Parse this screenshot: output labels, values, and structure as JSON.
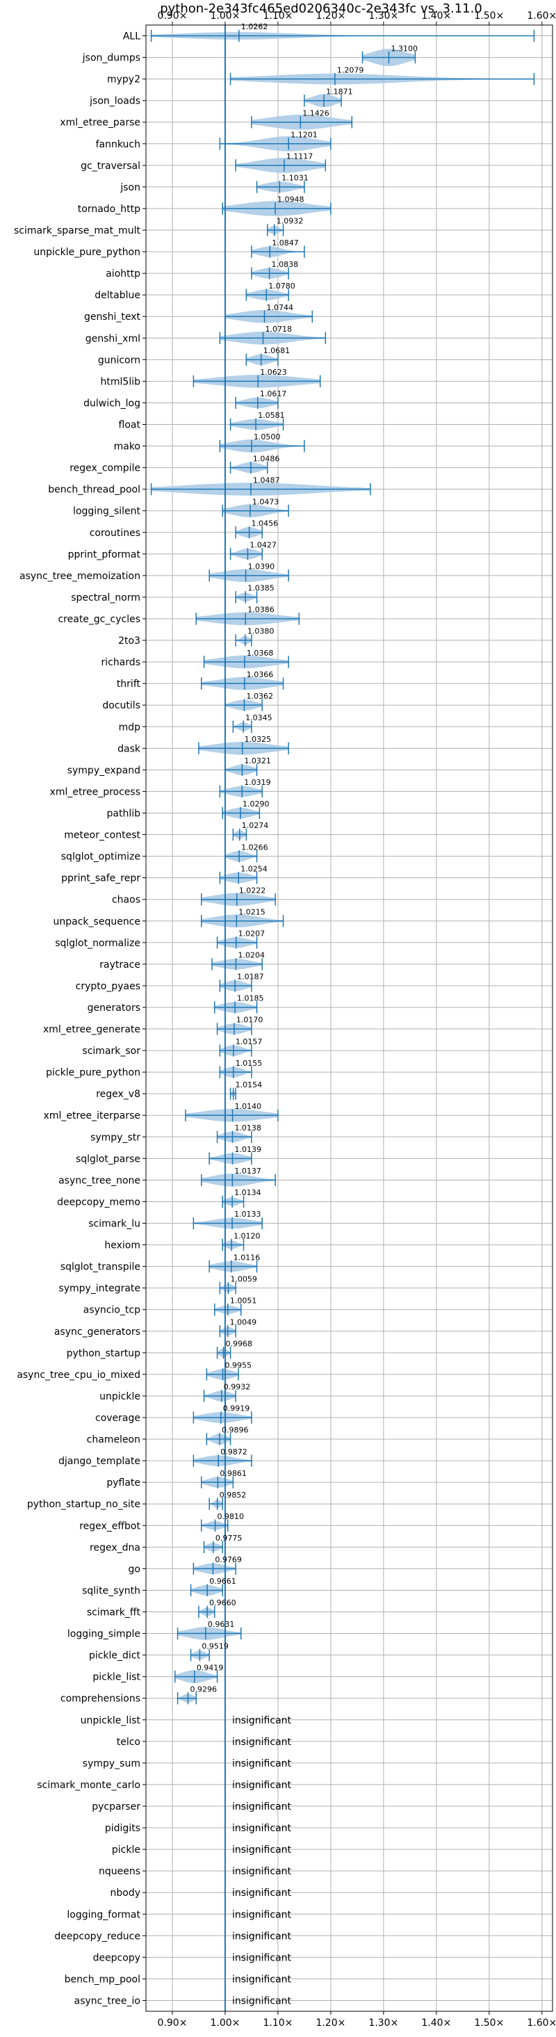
{
  "chart_data": {
    "type": "violin",
    "title": "python-2e343fc465ed0206340c-2e343fc vs. 3.11.0",
    "xlabel": "",
    "ylabel": "",
    "xlim": [
      0.85,
      1.62
    ],
    "xticks": [
      0.9,
      1.0,
      1.1,
      1.2,
      1.3,
      1.4,
      1.5,
      1.6
    ],
    "xtick_labels": [
      "0.90×",
      "1.00×",
      "1.10×",
      "1.20×",
      "1.30×",
      "1.40×",
      "1.50×",
      "1.60×"
    ],
    "reference_line": 1.0,
    "grid": true,
    "colors": {
      "violin": "#a6c8e4",
      "line": "#1f77b4",
      "grid": "#b0b0b0"
    },
    "insignificant_text": "insignificant",
    "benchmarks": [
      {
        "name": "ALL",
        "value": "1.0262",
        "median": 1.0262,
        "lo": 0.86,
        "hi": 1.585,
        "width": 0.35
      },
      {
        "name": "json_dumps",
        "value": "1.3100",
        "median": 1.31,
        "lo": 1.26,
        "hi": 1.36,
        "width": 0.8
      },
      {
        "name": "mypy2",
        "value": "1.2079",
        "median": 1.2079,
        "lo": 1.01,
        "hi": 1.585,
        "width": 0.5
      },
      {
        "name": "json_loads",
        "value": "1.1871",
        "median": 1.1871,
        "lo": 1.15,
        "hi": 1.22,
        "width": 0.6
      },
      {
        "name": "xml_etree_parse",
        "value": "1.1426",
        "median": 1.1426,
        "lo": 1.05,
        "hi": 1.24,
        "width": 0.7
      },
      {
        "name": "fannkuch",
        "value": "1.1201",
        "median": 1.1201,
        "lo": 0.99,
        "hi": 1.2,
        "width": 0.7
      },
      {
        "name": "gc_traversal",
        "value": "1.1117",
        "median": 1.1117,
        "lo": 1.02,
        "hi": 1.19,
        "width": 0.7
      },
      {
        "name": "json",
        "value": "1.1031",
        "median": 1.1031,
        "lo": 1.06,
        "hi": 1.15,
        "width": 0.5
      },
      {
        "name": "tornado_http",
        "value": "1.0948",
        "median": 1.0948,
        "lo": 0.995,
        "hi": 1.2,
        "width": 0.7
      },
      {
        "name": "scimark_sparse_mat_mult",
        "value": "1.0932",
        "median": 1.0932,
        "lo": 1.08,
        "hi": 1.11,
        "width": 0.4
      },
      {
        "name": "unpickle_pure_python",
        "value": "1.0847",
        "median": 1.0847,
        "lo": 1.05,
        "hi": 1.15,
        "width": 0.5
      },
      {
        "name": "aiohttp",
        "value": "1.0838",
        "median": 1.0838,
        "lo": 1.05,
        "hi": 1.12,
        "width": 0.5
      },
      {
        "name": "deltablue",
        "value": "1.0780",
        "median": 1.078,
        "lo": 1.04,
        "hi": 1.12,
        "width": 0.5
      },
      {
        "name": "genshi_text",
        "value": "1.0744",
        "median": 1.0744,
        "lo": 1.0,
        "hi": 1.165,
        "width": 0.6
      },
      {
        "name": "genshi_xml",
        "value": "1.0718",
        "median": 1.0718,
        "lo": 0.99,
        "hi": 1.19,
        "width": 0.6
      },
      {
        "name": "gunicorn",
        "value": "1.0681",
        "median": 1.0681,
        "lo": 1.04,
        "hi": 1.1,
        "width": 0.5
      },
      {
        "name": "html5lib",
        "value": "1.0623",
        "median": 1.0623,
        "lo": 0.94,
        "hi": 1.18,
        "width": 0.6
      },
      {
        "name": "dulwich_log",
        "value": "1.0617",
        "median": 1.0617,
        "lo": 1.02,
        "hi": 1.1,
        "width": 0.5
      },
      {
        "name": "float",
        "value": "1.0581",
        "median": 1.0581,
        "lo": 1.01,
        "hi": 1.11,
        "width": 0.5
      },
      {
        "name": "mako",
        "value": "1.0500",
        "median": 1.05,
        "lo": 0.99,
        "hi": 1.15,
        "width": 0.6
      },
      {
        "name": "regex_compile",
        "value": "1.0486",
        "median": 1.0486,
        "lo": 1.01,
        "hi": 1.08,
        "width": 0.5
      },
      {
        "name": "bench_thread_pool",
        "value": "1.0487",
        "median": 1.0487,
        "lo": 0.86,
        "hi": 1.275,
        "width": 0.6
      },
      {
        "name": "logging_silent",
        "value": "1.0473",
        "median": 1.0473,
        "lo": 0.995,
        "hi": 1.12,
        "width": 0.6
      },
      {
        "name": "coroutines",
        "value": "1.0456",
        "median": 1.0456,
        "lo": 1.02,
        "hi": 1.07,
        "width": 0.5
      },
      {
        "name": "pprint_pformat",
        "value": "1.0427",
        "median": 1.0427,
        "lo": 1.01,
        "hi": 1.07,
        "width": 0.5
      },
      {
        "name": "async_tree_memoization",
        "value": "1.0390",
        "median": 1.039,
        "lo": 0.97,
        "hi": 1.12,
        "width": 0.6
      },
      {
        "name": "spectral_norm",
        "value": "1.0385",
        "median": 1.0385,
        "lo": 1.02,
        "hi": 1.06,
        "width": 0.4
      },
      {
        "name": "create_gc_cycles",
        "value": "1.0386",
        "median": 1.0386,
        "lo": 0.945,
        "hi": 1.14,
        "width": 0.6
      },
      {
        "name": "2to3",
        "value": "1.0380",
        "median": 1.038,
        "lo": 1.02,
        "hi": 1.05,
        "width": 0.4
      },
      {
        "name": "richards",
        "value": "1.0368",
        "median": 1.0368,
        "lo": 0.96,
        "hi": 1.12,
        "width": 0.6
      },
      {
        "name": "thrift",
        "value": "1.0366",
        "median": 1.0366,
        "lo": 0.955,
        "hi": 1.11,
        "width": 0.6
      },
      {
        "name": "docutils",
        "value": "1.0362",
        "median": 1.0362,
        "lo": 1.0,
        "hi": 1.07,
        "width": 0.5
      },
      {
        "name": "mdp",
        "value": "1.0345",
        "median": 1.0345,
        "lo": 1.015,
        "hi": 1.05,
        "width": 0.4
      },
      {
        "name": "dask",
        "value": "1.0325",
        "median": 1.0325,
        "lo": 0.95,
        "hi": 1.12,
        "width": 0.6
      },
      {
        "name": "sympy_expand",
        "value": "1.0321",
        "median": 1.0321,
        "lo": 1.0,
        "hi": 1.06,
        "width": 0.5
      },
      {
        "name": "xml_etree_process",
        "value": "1.0319",
        "median": 1.0319,
        "lo": 0.99,
        "hi": 1.07,
        "width": 0.5
      },
      {
        "name": "pathlib",
        "value": "1.0290",
        "median": 1.029,
        "lo": 0.995,
        "hi": 1.065,
        "width": 0.5
      },
      {
        "name": "meteor_contest",
        "value": "1.0274",
        "median": 1.0274,
        "lo": 1.015,
        "hi": 1.04,
        "width": 0.4
      },
      {
        "name": "sqlglot_optimize",
        "value": "1.0266",
        "median": 1.0266,
        "lo": 1.0,
        "hi": 1.06,
        "width": 0.5
      },
      {
        "name": "pprint_safe_repr",
        "value": "1.0254",
        "median": 1.0254,
        "lo": 0.99,
        "hi": 1.06,
        "width": 0.5
      },
      {
        "name": "chaos",
        "value": "1.0222",
        "median": 1.0222,
        "lo": 0.955,
        "hi": 1.095,
        "width": 0.6
      },
      {
        "name": "unpack_sequence",
        "value": "1.0215",
        "median": 1.0215,
        "lo": 0.955,
        "hi": 1.11,
        "width": 0.6
      },
      {
        "name": "sqlglot_normalize",
        "value": "1.0207",
        "median": 1.0207,
        "lo": 0.985,
        "hi": 1.06,
        "width": 0.5
      },
      {
        "name": "raytrace",
        "value": "1.0204",
        "median": 1.0204,
        "lo": 0.975,
        "hi": 1.07,
        "width": 0.5
      },
      {
        "name": "crypto_pyaes",
        "value": "1.0187",
        "median": 1.0187,
        "lo": 0.99,
        "hi": 1.05,
        "width": 0.5
      },
      {
        "name": "generators",
        "value": "1.0185",
        "median": 1.0185,
        "lo": 0.98,
        "hi": 1.06,
        "width": 0.5
      },
      {
        "name": "xml_etree_generate",
        "value": "1.0170",
        "median": 1.017,
        "lo": 0.985,
        "hi": 1.05,
        "width": 0.5
      },
      {
        "name": "scimark_sor",
        "value": "1.0157",
        "median": 1.0157,
        "lo": 0.99,
        "hi": 1.05,
        "width": 0.5
      },
      {
        "name": "pickle_pure_python",
        "value": "1.0155",
        "median": 1.0155,
        "lo": 0.99,
        "hi": 1.05,
        "width": 0.5
      },
      {
        "name": "regex_v8",
        "value": "1.0154",
        "median": 1.0154,
        "lo": 1.01,
        "hi": 1.02,
        "width": 0.3
      },
      {
        "name": "xml_etree_iterparse",
        "value": "1.0140",
        "median": 1.014,
        "lo": 0.925,
        "hi": 1.1,
        "width": 0.6
      },
      {
        "name": "sympy_str",
        "value": "1.0138",
        "median": 1.0138,
        "lo": 0.985,
        "hi": 1.05,
        "width": 0.5
      },
      {
        "name": "sqlglot_parse",
        "value": "1.0139",
        "median": 1.0139,
        "lo": 0.97,
        "hi": 1.05,
        "width": 0.5
      },
      {
        "name": "async_tree_none",
        "value": "1.0137",
        "median": 1.0137,
        "lo": 0.955,
        "hi": 1.095,
        "width": 0.6
      },
      {
        "name": "deepcopy_memo",
        "value": "1.0134",
        "median": 1.0134,
        "lo": 0.995,
        "hi": 1.035,
        "width": 0.4
      },
      {
        "name": "scimark_lu",
        "value": "1.0133",
        "median": 1.0133,
        "lo": 0.94,
        "hi": 1.07,
        "width": 0.5
      },
      {
        "name": "hexiom",
        "value": "1.0120",
        "median": 1.012,
        "lo": 0.995,
        "hi": 1.035,
        "width": 0.4
      },
      {
        "name": "sqlglot_transpile",
        "value": "1.0116",
        "median": 1.0116,
        "lo": 0.97,
        "hi": 1.06,
        "width": 0.5
      },
      {
        "name": "sympy_integrate",
        "value": "1.0059",
        "median": 1.0059,
        "lo": 0.99,
        "hi": 1.02,
        "width": 0.4
      },
      {
        "name": "asyncio_tcp",
        "value": "1.0051",
        "median": 1.0051,
        "lo": 0.98,
        "hi": 1.03,
        "width": 0.4
      },
      {
        "name": "async_generators",
        "value": "1.0049",
        "median": 1.0049,
        "lo": 0.99,
        "hi": 1.02,
        "width": 0.4
      },
      {
        "name": "python_startup",
        "value": "0.9968",
        "median": 0.9968,
        "lo": 0.985,
        "hi": 1.01,
        "width": 0.4
      },
      {
        "name": "async_tree_cpu_io_mixed",
        "value": "0.9955",
        "median": 0.9955,
        "lo": 0.965,
        "hi": 1.025,
        "width": 0.5
      },
      {
        "name": "unpickle",
        "value": "0.9932",
        "median": 0.9932,
        "lo": 0.96,
        "hi": 1.02,
        "width": 0.5
      },
      {
        "name": "coverage",
        "value": "0.9919",
        "median": 0.9919,
        "lo": 0.94,
        "hi": 1.05,
        "width": 0.5
      },
      {
        "name": "chameleon",
        "value": "0.9896",
        "median": 0.9896,
        "lo": 0.965,
        "hi": 1.01,
        "width": 0.5
      },
      {
        "name": "django_template",
        "value": "0.9872",
        "median": 0.9872,
        "lo": 0.94,
        "hi": 1.05,
        "width": 0.5
      },
      {
        "name": "pyflate",
        "value": "0.9861",
        "median": 0.9861,
        "lo": 0.955,
        "hi": 1.015,
        "width": 0.5
      },
      {
        "name": "python_startup_no_site",
        "value": "0.9852",
        "median": 0.9852,
        "lo": 0.97,
        "hi": 0.995,
        "width": 0.4
      },
      {
        "name": "regex_effbot",
        "value": "0.9810",
        "median": 0.981,
        "lo": 0.955,
        "hi": 1.005,
        "width": 0.4
      },
      {
        "name": "regex_dna",
        "value": "0.9775",
        "median": 0.9775,
        "lo": 0.96,
        "hi": 0.995,
        "width": 0.4
      },
      {
        "name": "go",
        "value": "0.9769",
        "median": 0.9769,
        "lo": 0.94,
        "hi": 1.02,
        "width": 0.5
      },
      {
        "name": "sqlite_synth",
        "value": "0.9661",
        "median": 0.9661,
        "lo": 0.935,
        "hi": 0.995,
        "width": 0.5
      },
      {
        "name": "scimark_fft",
        "value": "0.9660",
        "median": 0.966,
        "lo": 0.95,
        "hi": 0.98,
        "width": 0.4
      },
      {
        "name": "logging_simple",
        "value": "0.9631",
        "median": 0.9631,
        "lo": 0.91,
        "hi": 1.03,
        "width": 0.6
      },
      {
        "name": "pickle_dict",
        "value": "0.9519",
        "median": 0.9519,
        "lo": 0.935,
        "hi": 0.97,
        "width": 0.4
      },
      {
        "name": "pickle_list",
        "value": "0.9419",
        "median": 0.9419,
        "lo": 0.905,
        "hi": 0.985,
        "width": 0.6
      },
      {
        "name": "comprehensions",
        "value": "0.9296",
        "median": 0.9296,
        "lo": 0.91,
        "hi": 0.945,
        "width": 0.4
      },
      {
        "name": "unpickle_list",
        "value": "insignificant"
      },
      {
        "name": "telco",
        "value": "insignificant"
      },
      {
        "name": "sympy_sum",
        "value": "insignificant"
      },
      {
        "name": "scimark_monte_carlo",
        "value": "insignificant"
      },
      {
        "name": "pycparser",
        "value": "insignificant"
      },
      {
        "name": "pidigits",
        "value": "insignificant"
      },
      {
        "name": "pickle",
        "value": "insignificant"
      },
      {
        "name": "nqueens",
        "value": "insignificant"
      },
      {
        "name": "nbody",
        "value": "insignificant"
      },
      {
        "name": "logging_format",
        "value": "insignificant"
      },
      {
        "name": "deepcopy_reduce",
        "value": "insignificant"
      },
      {
        "name": "deepcopy",
        "value": "insignificant"
      },
      {
        "name": "bench_mp_pool",
        "value": "insignificant"
      },
      {
        "name": "async_tree_io",
        "value": "insignificant"
      }
    ]
  }
}
